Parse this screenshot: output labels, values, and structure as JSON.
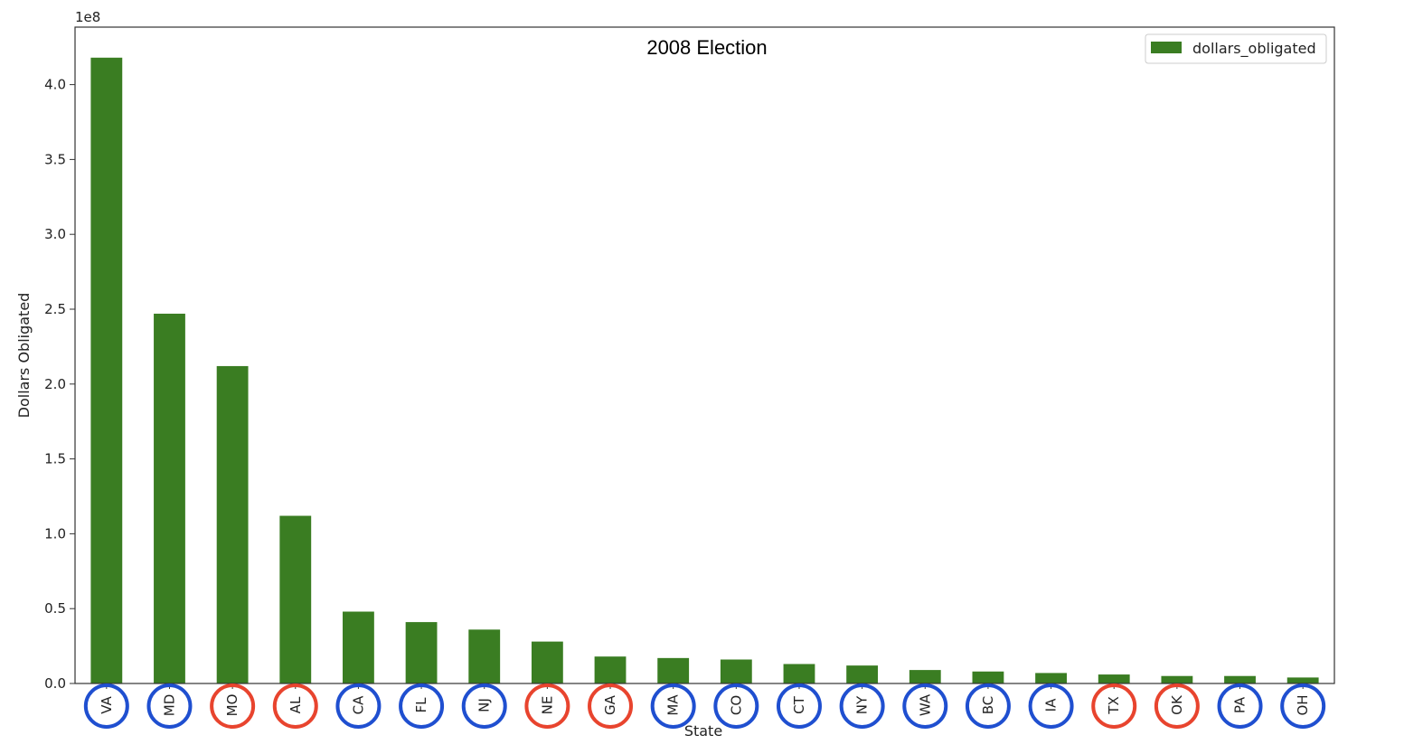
{
  "chart_data": {
    "type": "bar",
    "title": "2008 Election",
    "xlabel": "State",
    "ylabel": "Dollars Obligated",
    "y_offset_label": "1e8",
    "ylim": [
      0,
      4.35
    ],
    "yticks": [
      "0.0",
      "0.5",
      "1.0",
      "1.5",
      "2.0",
      "2.5",
      "3.0",
      "3.5",
      "4.0"
    ],
    "y_units": "×1e8 dollars",
    "grid": false,
    "legend": {
      "placement": "top-right",
      "entries": [
        "dollars_obligated"
      ]
    },
    "categories": [
      "VA",
      "MD",
      "MO",
      "AL",
      "CA",
      "FL",
      "NJ",
      "NE",
      "GA",
      "MA",
      "CO",
      "CT",
      "NY",
      "WA",
      "BC",
      "IA",
      "TX",
      "OK",
      "PA",
      "OH"
    ],
    "series": [
      {
        "name": "dollars_obligated",
        "values": [
          4.18,
          2.47,
          2.12,
          1.12,
          0.48,
          0.41,
          0.36,
          0.28,
          0.18,
          0.17,
          0.16,
          0.13,
          0.12,
          0.09,
          0.08,
          0.07,
          0.06,
          0.05,
          0.05,
          0.04
        ]
      }
    ],
    "circle_annotation": [
      "blue",
      "blue",
      "red",
      "red",
      "blue",
      "blue",
      "blue",
      "red",
      "red",
      "blue",
      "blue",
      "blue",
      "blue",
      "blue",
      "blue",
      "blue",
      "red",
      "red",
      "blue",
      "blue"
    ]
  },
  "colors": {
    "bar": "#3a7d22",
    "blue_circle": "#1f4fd0",
    "red_circle": "#e8442e",
    "axis": "#333333"
  }
}
